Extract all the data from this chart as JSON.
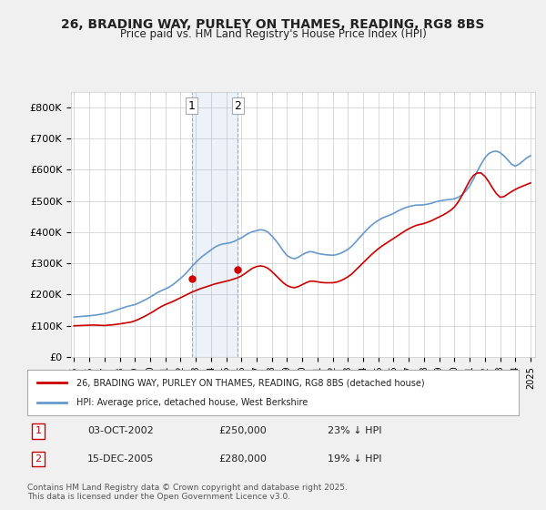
{
  "title": "26, BRADING WAY, PURLEY ON THAMES, READING, RG8 8BS",
  "subtitle": "Price paid vs. HM Land Registry's House Price Index (HPI)",
  "legend_line1": "26, BRADING WAY, PURLEY ON THAMES, READING, RG8 8BS (detached house)",
  "legend_line2": "HPI: Average price, detached house, West Berkshire",
  "footer": "Contains HM Land Registry data © Crown copyright and database right 2025.\nThis data is licensed under the Open Government Licence v3.0.",
  "transaction1_label": "1",
  "transaction1_date": "03-OCT-2002",
  "transaction1_price": "£250,000",
  "transaction1_hpi": "23% ↓ HPI",
  "transaction2_label": "2",
  "transaction2_date": "15-DEC-2005",
  "transaction2_price": "£280,000",
  "transaction2_hpi": "19% ↓ HPI",
  "red_color": "#cc0000",
  "blue_color": "#6699cc",
  "background_color": "#f0f0f0",
  "plot_bg_color": "#ffffff",
  "grid_color": "#cccccc",
  "ylim": [
    0,
    850000
  ],
  "yticks": [
    0,
    100000,
    200000,
    300000,
    400000,
    500000,
    600000,
    700000,
    800000
  ],
  "ytick_labels": [
    "£0",
    "£100K",
    "£200K",
    "£300K",
    "£400K",
    "£500K",
    "£600K",
    "£700K",
    "£800K"
  ],
  "hpi_years": [
    1995,
    1995.25,
    1995.5,
    1995.75,
    1996,
    1996.25,
    1996.5,
    1996.75,
    1997,
    1997.25,
    1997.5,
    1997.75,
    1998,
    1998.25,
    1998.5,
    1998.75,
    1999,
    1999.25,
    1999.5,
    1999.75,
    2000,
    2000.25,
    2000.5,
    2000.75,
    2001,
    2001.25,
    2001.5,
    2001.75,
    2002,
    2002.25,
    2002.5,
    2002.75,
    2003,
    2003.25,
    2003.5,
    2003.75,
    2004,
    2004.25,
    2004.5,
    2004.75,
    2005,
    2005.25,
    2005.5,
    2005.75,
    2006,
    2006.25,
    2006.5,
    2006.75,
    2007,
    2007.25,
    2007.5,
    2007.75,
    2008,
    2008.25,
    2008.5,
    2008.75,
    2009,
    2009.25,
    2009.5,
    2009.75,
    2010,
    2010.25,
    2010.5,
    2010.75,
    2011,
    2011.25,
    2011.5,
    2011.75,
    2012,
    2012.25,
    2012.5,
    2012.75,
    2013,
    2013.25,
    2013.5,
    2013.75,
    2014,
    2014.25,
    2014.5,
    2014.75,
    2015,
    2015.25,
    2015.5,
    2015.75,
    2016,
    2016.25,
    2016.5,
    2016.75,
    2017,
    2017.25,
    2017.5,
    2017.75,
    2018,
    2018.25,
    2018.5,
    2018.75,
    2019,
    2019.25,
    2019.5,
    2019.75,
    2020,
    2020.25,
    2020.5,
    2020.75,
    2021,
    2021.25,
    2021.5,
    2021.75,
    2022,
    2022.25,
    2022.5,
    2022.75,
    2023,
    2023.25,
    2023.5,
    2023.75,
    2024,
    2024.25,
    2024.5,
    2024.75,
    2025
  ],
  "hpi_values": [
    128000,
    129000,
    130000,
    131000,
    132000,
    133500,
    135000,
    137000,
    139000,
    142000,
    146000,
    150000,
    154000,
    158000,
    162000,
    165000,
    168000,
    173000,
    179000,
    185000,
    192000,
    199000,
    207000,
    213000,
    218000,
    224000,
    232000,
    242000,
    252000,
    263000,
    276000,
    290000,
    303000,
    315000,
    325000,
    334000,
    343000,
    352000,
    358000,
    362000,
    364000,
    366000,
    370000,
    376000,
    382000,
    390000,
    397000,
    402000,
    405000,
    408000,
    406000,
    400000,
    388000,
    374000,
    358000,
    340000,
    325000,
    318000,
    315000,
    320000,
    328000,
    334000,
    338000,
    336000,
    332000,
    330000,
    328000,
    327000,
    326000,
    328000,
    332000,
    338000,
    345000,
    355000,
    368000,
    382000,
    395000,
    408000,
    420000,
    430000,
    438000,
    445000,
    450000,
    455000,
    460000,
    467000,
    473000,
    478000,
    482000,
    485000,
    487000,
    487000,
    488000,
    490000,
    493000,
    497000,
    500000,
    502000,
    504000,
    505000,
    507000,
    512000,
    520000,
    532000,
    548000,
    570000,
    595000,
    618000,
    638000,
    652000,
    658000,
    660000,
    655000,
    645000,
    632000,
    618000,
    612000,
    618000,
    628000,
    638000,
    645000
  ],
  "price_years": [
    1995,
    1995.25,
    1995.5,
    1995.75,
    1996,
    1996.25,
    1996.5,
    1996.75,
    1997,
    1997.25,
    1997.5,
    1997.75,
    1998,
    1998.25,
    1998.5,
    1998.75,
    1999,
    1999.25,
    1999.5,
    1999.75,
    2000,
    2000.25,
    2000.5,
    2000.75,
    2001,
    2001.25,
    2001.5,
    2001.75,
    2002,
    2002.25,
    2002.5,
    2002.75,
    2003,
    2003.25,
    2003.5,
    2003.75,
    2004,
    2004.25,
    2004.5,
    2004.75,
    2005,
    2005.25,
    2005.5,
    2005.75,
    2006,
    2006.25,
    2006.5,
    2006.75,
    2007,
    2007.25,
    2007.5,
    2007.75,
    2008,
    2008.25,
    2008.5,
    2008.75,
    2009,
    2009.25,
    2009.5,
    2009.75,
    2010,
    2010.25,
    2010.5,
    2010.75,
    2011,
    2011.25,
    2011.5,
    2011.75,
    2012,
    2012.25,
    2012.5,
    2012.75,
    2013,
    2013.25,
    2013.5,
    2013.75,
    2014,
    2014.25,
    2014.5,
    2014.75,
    2015,
    2015.25,
    2015.5,
    2015.75,
    2016,
    2016.25,
    2016.5,
    2016.75,
    2017,
    2017.25,
    2017.5,
    2017.75,
    2018,
    2018.25,
    2018.5,
    2018.75,
    2019,
    2019.25,
    2019.5,
    2019.75,
    2020,
    2020.25,
    2020.5,
    2020.75,
    2021,
    2021.25,
    2021.5,
    2021.75,
    2022,
    2022.25,
    2022.5,
    2022.75,
    2023,
    2023.25,
    2023.5,
    2023.75,
    2024,
    2024.25,
    2024.5,
    2024.75,
    2025
  ],
  "price_values": [
    100000,
    100500,
    101000,
    101500,
    102000,
    102500,
    102000,
    101500,
    101000,
    102000,
    103000,
    104500,
    106000,
    108000,
    110000,
    112000,
    116000,
    121000,
    127000,
    133000,
    140000,
    147000,
    155000,
    162000,
    168000,
    173000,
    178000,
    184000,
    190000,
    196000,
    202000,
    208000,
    213000,
    218000,
    222000,
    226000,
    230000,
    234000,
    237000,
    240000,
    243000,
    246000,
    250000,
    254000,
    260000,
    268000,
    277000,
    285000,
    290000,
    292000,
    290000,
    284000,
    274000,
    262000,
    250000,
    238000,
    229000,
    224000,
    222000,
    226000,
    232000,
    238000,
    243000,
    243000,
    241000,
    239000,
    238000,
    238000,
    238000,
    240000,
    244000,
    250000,
    257000,
    266000,
    278000,
    290000,
    302000,
    314000,
    326000,
    337000,
    347000,
    356000,
    364000,
    372000,
    380000,
    388000,
    396000,
    404000,
    411000,
    417000,
    422000,
    425000,
    428000,
    432000,
    437000,
    443000,
    449000,
    455000,
    462000,
    470000,
    481000,
    497000,
    518000,
    542000,
    565000,
    582000,
    590000,
    590000,
    579000,
    562000,
    542000,
    524000,
    512000,
    514000,
    522000,
    530000,
    537000,
    543000,
    548000,
    553000,
    558000
  ],
  "transaction1_x": 2002.75,
  "transaction1_y": 250000,
  "transaction2_x": 2005.75,
  "transaction2_y": 280000,
  "vline1_x": 2002.75,
  "vline2_x": 2005.75,
  "xtick_years": [
    1995,
    1996,
    1997,
    1998,
    1999,
    2000,
    2001,
    2002,
    2003,
    2004,
    2005,
    2006,
    2007,
    2008,
    2009,
    2010,
    2011,
    2012,
    2013,
    2014,
    2015,
    2016,
    2017,
    2018,
    2019,
    2020,
    2021,
    2022,
    2023,
    2024,
    2025
  ]
}
